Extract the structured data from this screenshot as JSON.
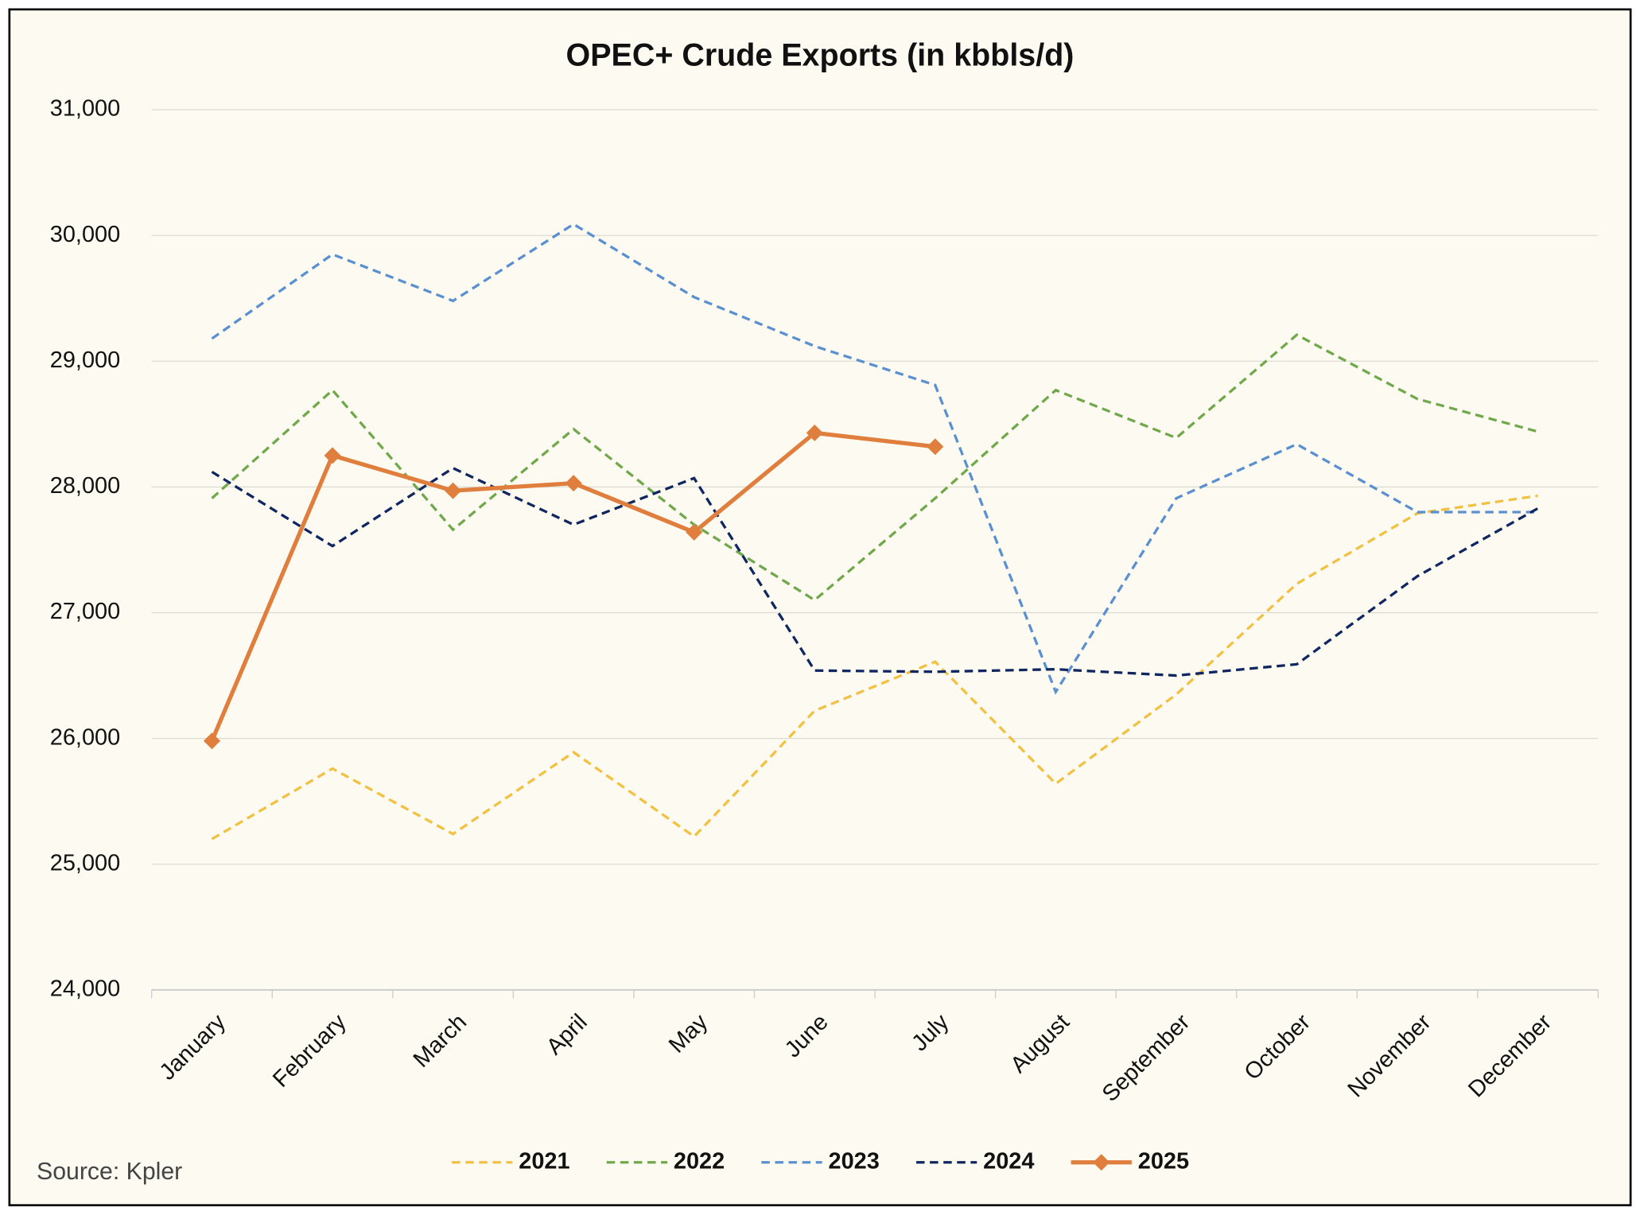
{
  "chart_data": {
    "type": "line",
    "title": "OPEC+ Crude Exports (in kbbls/d)",
    "source": "Source: Kpler",
    "categories": [
      "January",
      "February",
      "March",
      "April",
      "May",
      "June",
      "July",
      "August",
      "September",
      "October",
      "November",
      "December"
    ],
    "series": [
      {
        "name": "2021",
        "color": "#f2c143",
        "style": "dashed",
        "values": [
          25200,
          25760,
          25240,
          25890,
          25220,
          26220,
          26610,
          25640,
          26350,
          27230,
          27790,
          27930
        ]
      },
      {
        "name": "2022",
        "color": "#70a84b",
        "style": "dashed",
        "values": [
          27910,
          28770,
          27660,
          28460,
          27700,
          27100,
          27910,
          28770,
          28390,
          29210,
          28700,
          28440
        ]
      },
      {
        "name": "2023",
        "color": "#5b90d0",
        "style": "dashed",
        "values": [
          29180,
          29850,
          29480,
          30090,
          29510,
          29120,
          28810,
          26370,
          27910,
          28340,
          27800,
          27800
        ]
      },
      {
        "name": "2024",
        "color": "#102660",
        "style": "dashed",
        "values": [
          28120,
          27530,
          28150,
          27700,
          28070,
          26540,
          26530,
          26550,
          26500,
          26590,
          27290,
          27830
        ]
      },
      {
        "name": "2025",
        "color": "#e07f3d",
        "style": "solid-diamond",
        "values": [
          25980,
          28250,
          27970,
          28030,
          27640,
          28430,
          28320,
          null,
          null,
          null,
          null,
          null
        ]
      }
    ],
    "ylim": [
      24000,
      31000
    ],
    "yticks": [
      {
        "value": 24000,
        "label": "24,000"
      },
      {
        "value": 25000,
        "label": "25,000"
      },
      {
        "value": 26000,
        "label": "26,000"
      },
      {
        "value": 27000,
        "label": "27,000"
      },
      {
        "value": 28000,
        "label": "28,000"
      },
      {
        "value": 29000,
        "label": "29,000"
      },
      {
        "value": 30000,
        "label": "30,000"
      },
      {
        "value": 31000,
        "label": "31,000"
      }
    ],
    "grid": true,
    "legend": "bottom"
  }
}
